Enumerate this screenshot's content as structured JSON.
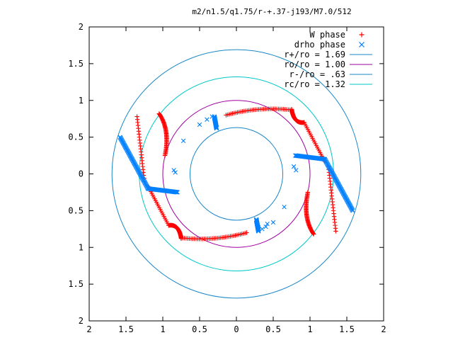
{
  "chart_data": {
    "type": "scatter",
    "title": "m2/n1.5/q1.75/r-+.37-j193/M7.0/512",
    "xlim": [
      -2,
      2
    ],
    "ylim": [
      -2,
      2
    ],
    "x_ticks": [
      -2,
      -1.5,
      -1,
      -0.5,
      0,
      0.5,
      1,
      1.5,
      2
    ],
    "y_ticks": [
      -2,
      -1.5,
      -1,
      -0.5,
      0,
      0.5,
      1,
      1.5,
      2
    ],
    "x_tick_labels": [
      "2",
      "1.5",
      "1",
      "0.5",
      "0",
      "0.5",
      "1",
      "1.5",
      "2"
    ],
    "y_tick_labels": [
      "2",
      "1.5",
      "1",
      "0.5",
      "0",
      "0.5",
      "1",
      "1.5",
      "2"
    ],
    "grid": false,
    "legend_position": "top-right",
    "series": [
      {
        "name": "W phase",
        "kind": "points",
        "marker": "plus",
        "color": "#ff0000"
      },
      {
        "name": "drho phase",
        "kind": "points",
        "marker": "cross",
        "color": "#0080ff"
      },
      {
        "name": "r+/ro = 1.69",
        "kind": "circle",
        "radius": 1.69,
        "color": "#1a87c8"
      },
      {
        "name": "ro/ro = 1.00",
        "kind": "circle",
        "radius": 1.0,
        "color": "#a000a0"
      },
      {
        "name": "r-/ro = .63",
        "kind": "circle",
        "radius": 0.63,
        "color": "#1a87c8"
      },
      {
        "name": "rc/ro = 1.32",
        "kind": "circle",
        "radius": 1.32,
        "color": "#00c8c8"
      }
    ],
    "w_phase_arms": [
      {
        "inner": [
          -0.14,
          0.8
        ],
        "outer": [
          0.75,
          0.87
        ],
        "bump": [
          0.3,
          0.92
        ]
      },
      {
        "inner": [
          0.14,
          -0.8
        ],
        "outer": [
          -0.75,
          -0.87
        ],
        "bump": [
          -0.3,
          -0.92
        ]
      }
    ],
    "w_phase_hooks": [
      {
        "from": [
          -1.05,
          0.82
        ],
        "to": [
          -0.97,
          0.25
        ],
        "via": [
          -0.9,
          0.6
        ]
      },
      {
        "from": [
          1.05,
          -0.82
        ],
        "to": [
          0.97,
          -0.25
        ],
        "via": [
          0.9,
          -0.6
        ]
      },
      {
        "from": [
          0.75,
          0.88
        ],
        "to": [
          0.92,
          0.7
        ],
        "via": [
          0.78,
          0.68
        ]
      },
      {
        "from": [
          -0.75,
          -0.88
        ],
        "to": [
          -0.92,
          -0.7
        ],
        "via": [
          -0.78,
          -0.68
        ]
      }
    ],
    "w_phase_tails": [
      {
        "from": [
          0.92,
          0.7
        ],
        "to": [
          1.2,
          0.17
        ]
      },
      {
        "from": [
          -0.92,
          -0.7
        ],
        "to": [
          -1.2,
          -0.17
        ]
      },
      {
        "from": [
          1.25,
          0.1
        ],
        "to": [
          1.35,
          -0.78
        ]
      },
      {
        "from": [
          -1.25,
          -0.1
        ],
        "to": [
          -1.35,
          0.78
        ]
      }
    ],
    "drho_arms": [
      {
        "from": [
          -1.58,
          0.5
        ],
        "to": [
          -1.2,
          -0.2
        ]
      },
      {
        "from": [
          1.58,
          -0.5
        ],
        "to": [
          1.2,
          0.2
        ]
      },
      {
        "from": [
          -1.2,
          -0.2
        ],
        "to": [
          -0.8,
          -0.25
        ]
      },
      {
        "from": [
          1.2,
          0.2
        ],
        "to": [
          0.8,
          0.25
        ]
      },
      {
        "from": [
          -0.3,
          0.78
        ],
        "to": [
          -0.27,
          0.62
        ]
      },
      {
        "from": [
          0.3,
          -0.78
        ],
        "to": [
          0.27,
          -0.62
        ]
      }
    ],
    "drho_scattered": [
      [
        -0.85,
        0.05
      ],
      [
        -0.72,
        0.45
      ],
      [
        -0.5,
        0.67
      ],
      [
        -0.4,
        0.74
      ],
      [
        -0.33,
        0.78
      ],
      [
        -0.83,
        0.02
      ],
      [
        0.4,
        -0.72
      ],
      [
        0.42,
        -0.68
      ],
      [
        0.5,
        -0.66
      ],
      [
        0.65,
        -0.45
      ],
      [
        0.81,
        0.05
      ],
      [
        0.78,
        0.1
      ],
      [
        0.35,
        -0.75
      ],
      [
        0.3,
        -0.73
      ]
    ]
  }
}
